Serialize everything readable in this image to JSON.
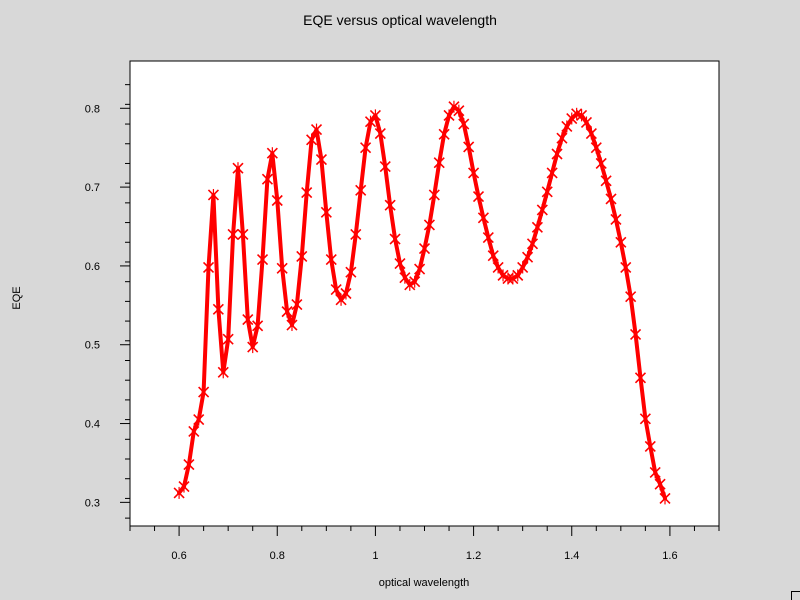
{
  "colors": {
    "background": "#d8d8d8",
    "plot_bg": "#ffffff",
    "series": "#ff0000"
  },
  "chart_data": {
    "type": "line",
    "title": "EQE versus optical wavelength",
    "xlabel": "optical wavelength",
    "ylabel": "EQE",
    "xlim": [
      0.5,
      1.7
    ],
    "ylim": [
      0.27,
      0.86
    ],
    "xticks": [
      0.6,
      0.8,
      1,
      1.2,
      1.4,
      1.6
    ],
    "xtick_labels": [
      "0.6",
      "0.8",
      "1",
      "1.2",
      "1.4",
      "1.6"
    ],
    "yticks": [
      0.3,
      0.4,
      0.5,
      0.6,
      0.7,
      0.8
    ],
    "ytick_labels": [
      "0.3",
      "0.4",
      "0.5",
      "0.6",
      "0.7",
      "0.8"
    ],
    "marker": "x",
    "series": [
      {
        "x": [
          0.6,
          0.61,
          0.62,
          0.63,
          0.64,
          0.65,
          0.66,
          0.67,
          0.68,
          0.69,
          0.7,
          0.71,
          0.72,
          0.73,
          0.74,
          0.75,
          0.76,
          0.77,
          0.78,
          0.79,
          0.8,
          0.81,
          0.82,
          0.83,
          0.84,
          0.85,
          0.86,
          0.87,
          0.88,
          0.89,
          0.9,
          0.91,
          0.92,
          0.93,
          0.94,
          0.95,
          0.96,
          0.97,
          0.98,
          0.99,
          1.0,
          1.01,
          1.02,
          1.03,
          1.04,
          1.05,
          1.06,
          1.07,
          1.08,
          1.09,
          1.1,
          1.11,
          1.12,
          1.13,
          1.14,
          1.15,
          1.16,
          1.17,
          1.18,
          1.19,
          1.2,
          1.21,
          1.22,
          1.23,
          1.24,
          1.25,
          1.26,
          1.27,
          1.28,
          1.29,
          1.3,
          1.31,
          1.32,
          1.33,
          1.34,
          1.35,
          1.36,
          1.37,
          1.38,
          1.39,
          1.4,
          1.41,
          1.42,
          1.43,
          1.44,
          1.45,
          1.46,
          1.47,
          1.48,
          1.49,
          1.5,
          1.51,
          1.52,
          1.53,
          1.54,
          1.55,
          1.56,
          1.57,
          1.58,
          1.59
        ],
        "y": [
          0.312,
          0.32,
          0.348,
          0.39,
          0.405,
          0.44,
          0.598,
          0.69,
          0.545,
          0.465,
          0.507,
          0.64,
          0.724,
          0.64,
          0.532,
          0.497,
          0.524,
          0.608,
          0.71,
          0.743,
          0.683,
          0.597,
          0.542,
          0.525,
          0.551,
          0.612,
          0.693,
          0.76,
          0.773,
          0.735,
          0.668,
          0.608,
          0.57,
          0.557,
          0.565,
          0.592,
          0.64,
          0.696,
          0.75,
          0.783,
          0.791,
          0.768,
          0.726,
          0.677,
          0.634,
          0.603,
          0.585,
          0.576,
          0.58,
          0.596,
          0.622,
          0.652,
          0.69,
          0.731,
          0.767,
          0.791,
          0.802,
          0.797,
          0.78,
          0.751,
          0.718,
          0.688,
          0.661,
          0.636,
          0.613,
          0.598,
          0.588,
          0.584,
          0.584,
          0.588,
          0.598,
          0.611,
          0.628,
          0.649,
          0.671,
          0.694,
          0.718,
          0.742,
          0.762,
          0.777,
          0.787,
          0.793,
          0.791,
          0.782,
          0.768,
          0.75,
          0.73,
          0.708,
          0.685,
          0.659,
          0.63,
          0.598,
          0.561,
          0.513,
          0.458,
          0.406,
          0.371,
          0.338,
          0.323,
          0.305
        ]
      }
    ]
  }
}
